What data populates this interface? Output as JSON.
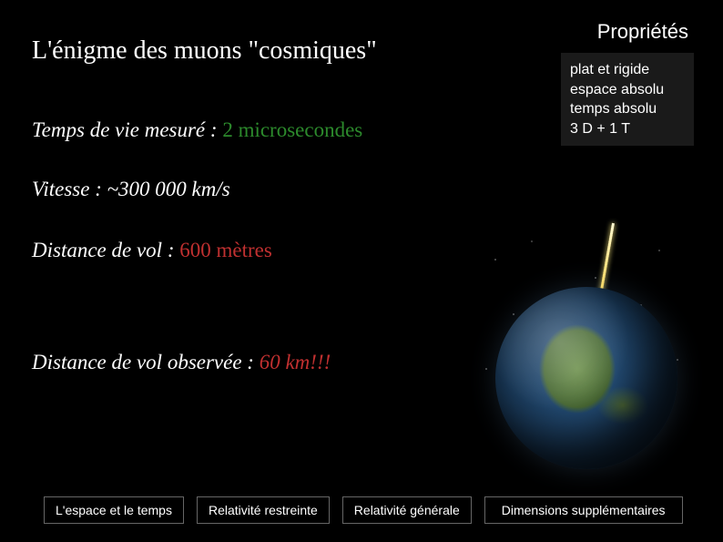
{
  "title": "L'énigme des muons \"cosmiques\"",
  "propertiesHeader": "Propriétés",
  "properties": {
    "line1": "plat et rigide",
    "line2": "espace absolu",
    "line3": "temps absolu",
    "line4": "3 D + 1 T"
  },
  "measurements": {
    "lifetime": {
      "label": "Temps de vie mesuré : ",
      "value": "2 microsecondes"
    },
    "speed": {
      "label": "Vitesse : ",
      "value": "~300 000 km/s"
    },
    "distance": {
      "label": "Distance de vol : ",
      "value": "600 mètres"
    },
    "observed": {
      "label": "Distance de vol observée : ",
      "value": "60 km!!!"
    }
  },
  "nav": {
    "item1": "L'espace et le temps",
    "item2": "Relativité restreinte",
    "item3": "Relativité générale",
    "item4": "Dimensions supplémentaires"
  },
  "colors": {
    "background": "#000000",
    "text": "#ffffff",
    "green": "#2c8a2c",
    "red": "#c03030",
    "navBorder": "#666666"
  },
  "illustration": {
    "type": "infographic",
    "description": "earth-with-cosmic-ray",
    "earth_gradient": [
      "#2a5a8a",
      "#1a3a5a",
      "#0a1a2a"
    ],
    "land_color": "#6b8f4a",
    "ray_colors": [
      "#fff8d0",
      "#ffdd60",
      "#ff8030"
    ],
    "spark_colors": [
      "#ff5050",
      "#40c040",
      "#ffaa30",
      "#ff7030"
    ]
  }
}
